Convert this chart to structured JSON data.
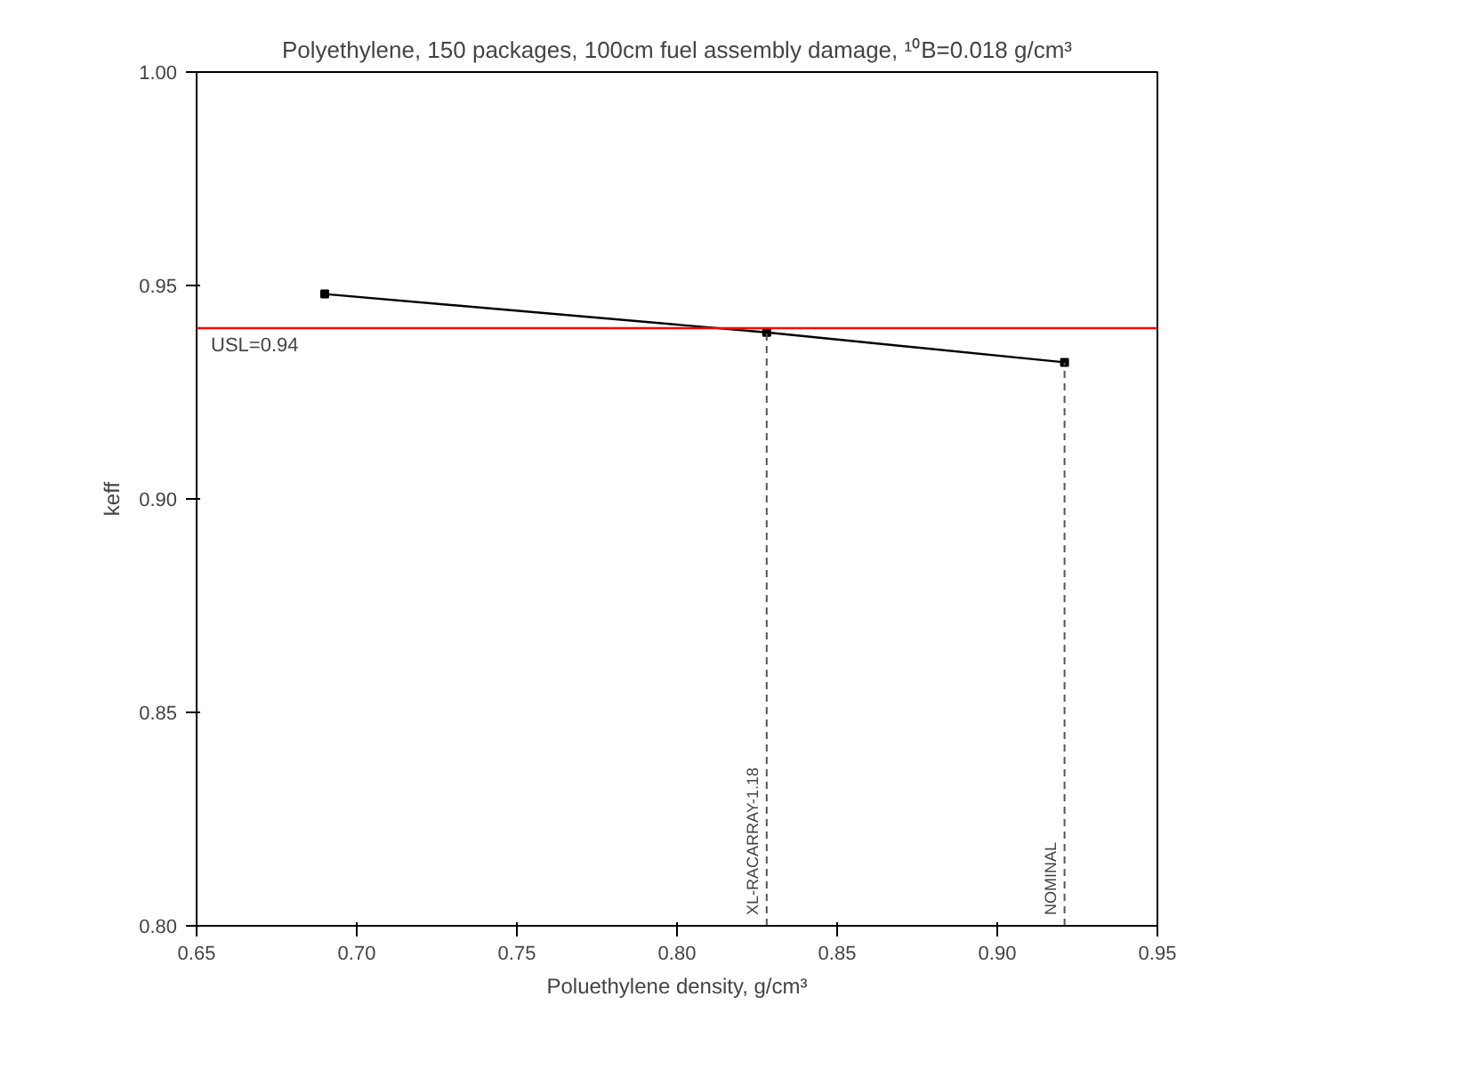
{
  "chart_data": {
    "type": "line",
    "title": "Polyethylene, 150 packages, 100cm fuel assembly damage, ¹⁰B=0.018 g/cm³",
    "xlabel": "Poluethylene density, g/cm³",
    "ylabel": "keff",
    "x": [
      0.69,
      0.828,
      0.921
    ],
    "series": [
      {
        "color": "#000000",
        "values": [
          0.948,
          0.939,
          0.932
        ]
      }
    ],
    "marker": "square",
    "line_style": "solid",
    "xlim": [
      0.65,
      0.95
    ],
    "xticks": [
      {
        "value": 0.65,
        "label": "0.65"
      },
      {
        "value": 0.7,
        "label": "0.70"
      },
      {
        "value": 0.75,
        "label": "0.75"
      },
      {
        "value": 0.8,
        "label": "0.80"
      },
      {
        "value": 0.85,
        "label": "0.85"
      },
      {
        "value": 0.9,
        "label": "0.90"
      },
      {
        "value": 0.95,
        "label": "0.95"
      }
    ],
    "ylim": [
      0.8,
      1.0
    ],
    "yticks": [
      {
        "value": 0.8,
        "label": "0.80"
      },
      {
        "value": 0.85,
        "label": "0.85"
      },
      {
        "value": 0.9,
        "label": "0.90"
      },
      {
        "value": 0.95,
        "label": "0.95"
      },
      {
        "value": 1.0,
        "label": "1.00"
      }
    ],
    "ref_lines": [
      {
        "axis": "y",
        "value": 0.94,
        "label": "USL=0.94",
        "color": "#ff0000",
        "line_style": "solid"
      },
      {
        "axis": "x",
        "value": 0.828,
        "label": "XL-RACARRAY-1.18",
        "color": "#555555",
        "line_style": "dashed"
      },
      {
        "axis": "x",
        "value": 0.921,
        "label": "NOMINAL",
        "color": "#555555",
        "line_style": "dashed"
      }
    ],
    "grid": false
  }
}
